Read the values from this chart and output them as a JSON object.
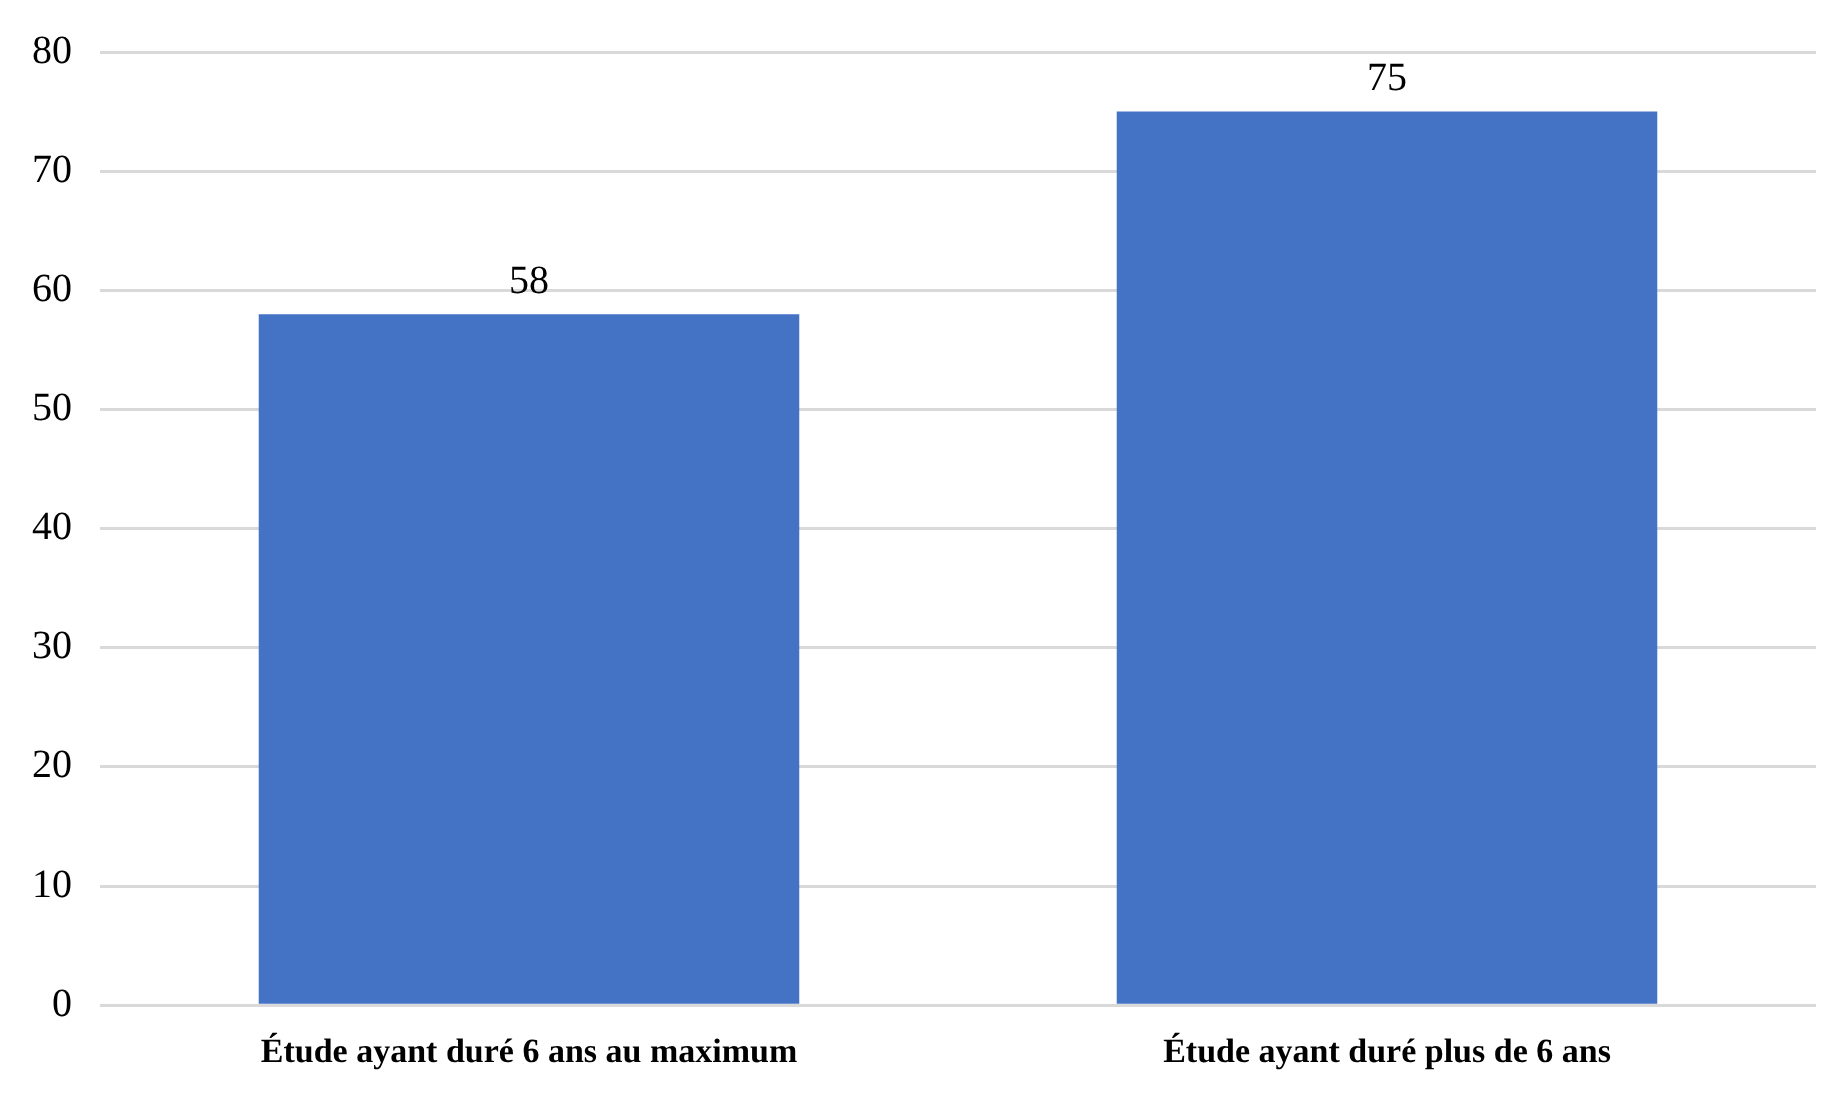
{
  "chart_data": {
    "type": "bar",
    "categories": [
      "Étude ayant duré 6 ans au maximum",
      "Étude ayant duré plus de 6 ans"
    ],
    "values": [
      58,
      75
    ],
    "color": "#4472c4",
    "ylim": [
      0,
      80
    ],
    "yticks": [
      0,
      10,
      20,
      30,
      40,
      50,
      60,
      70,
      80
    ],
    "grid": "y",
    "data_labels": true,
    "legend": false
  }
}
